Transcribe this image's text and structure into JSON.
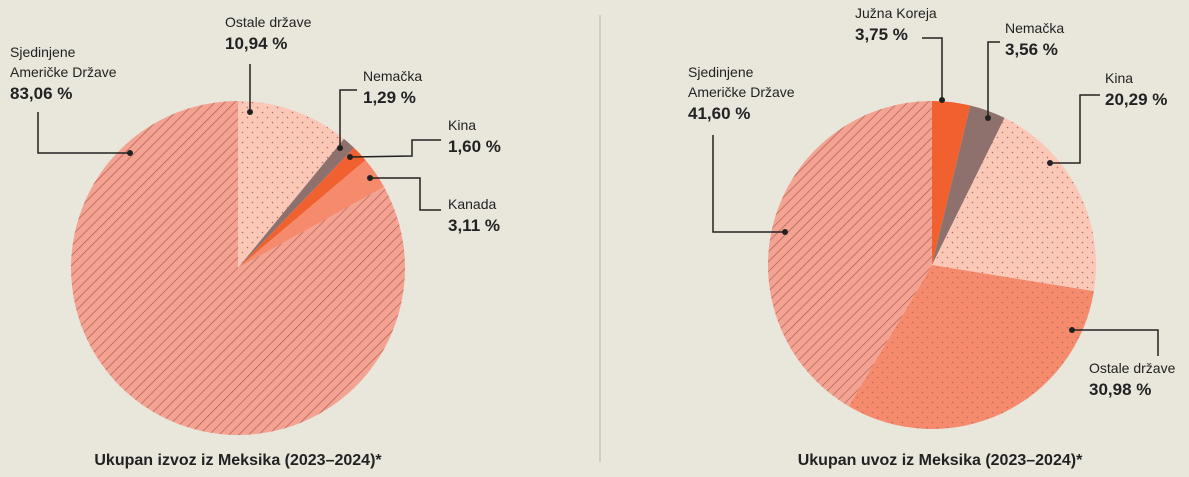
{
  "chart_data": [
    {
      "type": "pie",
      "title": "Ukupan izvoz iz Meksika (2023–2024)*",
      "labels": [
        "Ostale države",
        "Nemačka",
        "Kina",
        "Kanada",
        "Sjedinjene Američke Države"
      ],
      "values": [
        10.94,
        1.29,
        1.6,
        3.11,
        83.06
      ],
      "value_labels": [
        "10,94 %",
        "1,29 %",
        "1,60 %",
        "3,11 %",
        "83,06 %"
      ],
      "colors": [
        "#fbc8b8",
        "#8e706c",
        "#f0612f",
        "#f58a6c",
        "#f4a393"
      ],
      "patterns": [
        "dots",
        "none",
        "none",
        "none",
        "hatch"
      ]
    },
    {
      "type": "pie",
      "title": "Ukupan uvoz iz Meksika (2023–2024)*",
      "labels": [
        "Južna Koreja",
        "Nemačka",
        "Kina",
        "Ostale države",
        "Sjedinjene Američke Države"
      ],
      "values": [
        3.75,
        3.56,
        20.29,
        30.98,
        41.6
      ],
      "value_labels": [
        "3,75 %",
        "3,56 %",
        "20,29 %",
        "30,98 %",
        "41,60 %"
      ],
      "colors": [
        "#f0612f",
        "#8e706c",
        "#fbc8b8",
        "#f58a6c",
        "#f4a393"
      ],
      "patterns": [
        "none",
        "none",
        "dots",
        "dots",
        "hatch"
      ]
    }
  ]
}
